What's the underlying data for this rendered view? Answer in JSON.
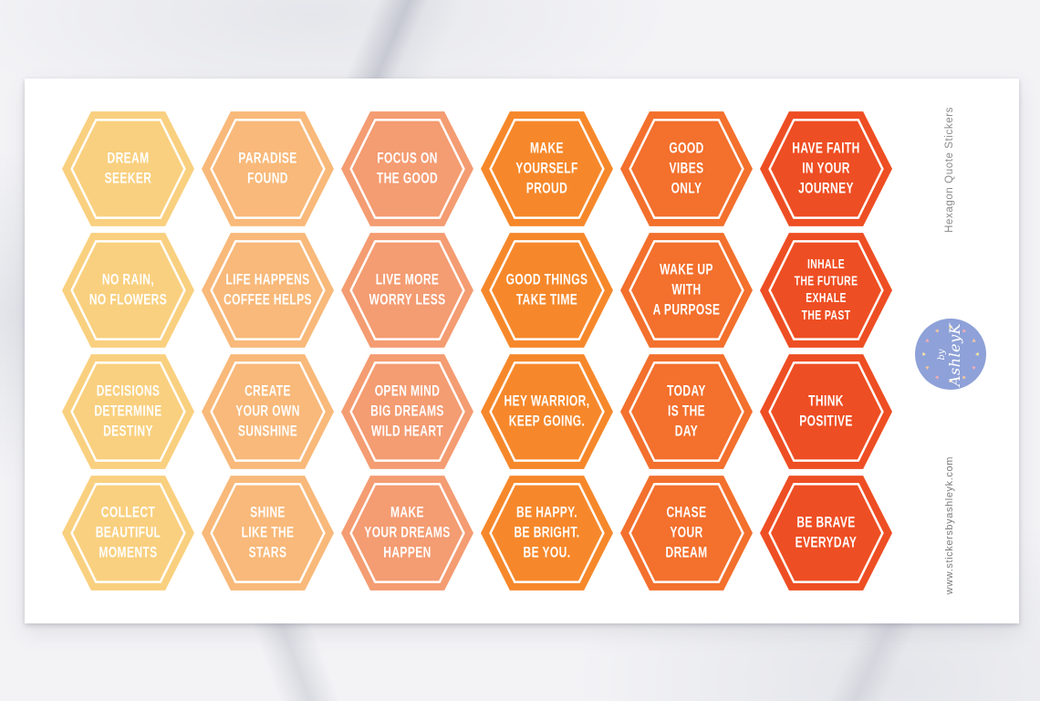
{
  "branding": {
    "side_title": "Hexagon Quote Stickers",
    "side_title_color": "#8B8B8B",
    "website": "www.stickersbyashleyk.com",
    "website_color": "#7D7D7D",
    "logo": {
      "prefix": "by",
      "name": "AshleyK",
      "circle_color": "#8EA1D8",
      "text_color": "#FFFFFF",
      "heart_count": 12,
      "heart_colors": [
        "#F6E3A2",
        "#F5ADB6",
        "#F7C79E"
      ]
    }
  },
  "sheet": {
    "background": "#FFFFFF",
    "sticker_text_color": "#FFFFFF"
  },
  "palette": {
    "column_colors": [
      "#F9D07F",
      "#F8B97A",
      "#F49C72",
      "#F6882B",
      "#F3702D",
      "#EE4E23"
    ]
  },
  "stickers": [
    {
      "lines": [
        "DREAM",
        "SEEKER"
      ],
      "color": "#F9D07F"
    },
    {
      "lines": [
        "PARADISE",
        "FOUND"
      ],
      "color": "#F8B97A"
    },
    {
      "lines": [
        "FOCUS ON",
        "THE GOOD"
      ],
      "color": "#F49C72"
    },
    {
      "lines": [
        "MAKE",
        "YOURSELF",
        "PROUD"
      ],
      "color": "#F6882B"
    },
    {
      "lines": [
        "GOOD",
        "VIBES",
        "ONLY"
      ],
      "color": "#F3702D"
    },
    {
      "lines": [
        "HAVE FAITH",
        "IN YOUR",
        "JOURNEY"
      ],
      "color": "#EE4E23"
    },
    {
      "lines": [
        "NO RAIN,",
        "NO FLOWERS"
      ],
      "color": "#F9D07F"
    },
    {
      "lines": [
        "LIFE HAPPENS",
        "COFFEE HELPS"
      ],
      "color": "#F8B97A"
    },
    {
      "lines": [
        "LIVE MORE",
        "WORRY LESS"
      ],
      "color": "#F49C72"
    },
    {
      "lines": [
        "GOOD THINGS",
        "TAKE TIME"
      ],
      "color": "#F6882B"
    },
    {
      "lines": [
        "WAKE UP",
        "WITH",
        "A PURPOSE"
      ],
      "color": "#F3702D"
    },
    {
      "lines": [
        "INHALE",
        "THE FUTURE",
        "EXHALE",
        "THE PAST"
      ],
      "color": "#EE4E23"
    },
    {
      "lines": [
        "DECISIONS",
        "DETERMINE",
        "DESTINY"
      ],
      "color": "#F9D07F"
    },
    {
      "lines": [
        "CREATE",
        "YOUR OWN",
        "SUNSHINE"
      ],
      "color": "#F8B97A"
    },
    {
      "lines": [
        "OPEN MIND",
        "BIG DREAMS",
        "WILD HEART"
      ],
      "color": "#F49C72"
    },
    {
      "lines": [
        "HEY WARRIOR,",
        "KEEP GOING."
      ],
      "color": "#F6882B"
    },
    {
      "lines": [
        "TODAY",
        "IS THE",
        "DAY"
      ],
      "color": "#F3702D"
    },
    {
      "lines": [
        "THINK",
        "POSITIVE"
      ],
      "color": "#EE4E23"
    },
    {
      "lines": [
        "COLLECT",
        "BEAUTIFUL",
        "MOMENTS"
      ],
      "color": "#F9D07F"
    },
    {
      "lines": [
        "SHINE",
        "LIKE THE",
        "STARS"
      ],
      "color": "#F8B97A"
    },
    {
      "lines": [
        "MAKE",
        "YOUR DREAMS",
        "HAPPEN"
      ],
      "color": "#F49C72"
    },
    {
      "lines": [
        "BE HAPPY.",
        "BE BRIGHT.",
        "BE YOU."
      ],
      "color": "#F6882B"
    },
    {
      "lines": [
        "CHASE",
        "YOUR",
        "DREAM"
      ],
      "color": "#F3702D"
    },
    {
      "lines": [
        "BE BRAVE",
        "EVERYDAY"
      ],
      "color": "#EE4E23"
    }
  ]
}
